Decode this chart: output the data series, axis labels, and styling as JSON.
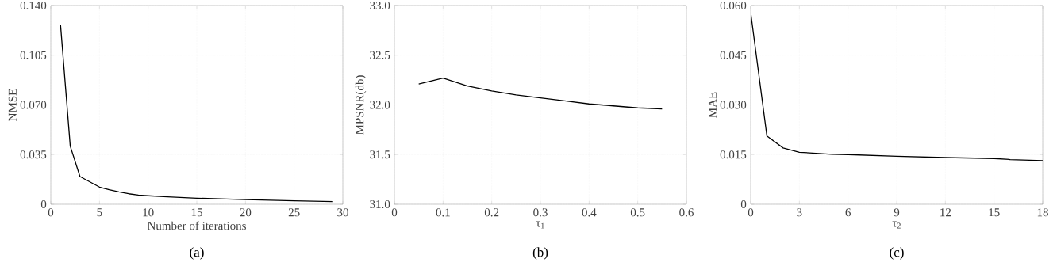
{
  "chart_data": [
    {
      "type": "line",
      "xlabel": "Number of iterations",
      "ylabel": "NMSE",
      "annotations": [
        "(a)"
      ],
      "color": "#000000",
      "grid": true,
      "x": [
        1,
        2,
        3,
        4,
        5,
        6,
        7,
        8,
        9,
        10,
        12,
        15,
        20,
        25,
        29
      ],
      "values": [
        0.1264,
        0.0409,
        0.0195,
        0.0158,
        0.0121,
        0.0102,
        0.0087,
        0.0074,
        0.0065,
        0.006,
        0.0052,
        0.0043,
        0.0033,
        0.0024,
        0.0019
      ],
      "xlim": [
        0,
        30
      ],
      "ylim": [
        0,
        0.14
      ],
      "xticks": [
        0,
        5,
        10,
        15,
        20,
        25,
        30
      ],
      "yticks": [
        0,
        {
          "value": 0.035,
          "label": "0.035"
        },
        {
          "value": 0.07,
          "label": "0.070"
        },
        {
          "value": 0.105,
          "label": "0.105"
        },
        {
          "value": 0.14,
          "label": "0.140"
        }
      ]
    },
    {
      "type": "line",
      "xlabel": "τ$_{1}$",
      "ylabel": "MPSNR(db)",
      "annotations": [
        "(b)"
      ],
      "color": "#000000",
      "grid": true,
      "x": [
        0.05,
        0.1,
        0.15,
        0.2,
        0.25,
        0.3,
        0.35,
        0.4,
        0.45,
        0.5,
        0.55
      ],
      "values": [
        32.21,
        32.27,
        32.19,
        32.14,
        32.1,
        32.07,
        32.04,
        32.01,
        31.99,
        31.97,
        31.96
      ],
      "xlim": [
        0,
        0.6
      ],
      "ylim": [
        31,
        33
      ],
      "xticks": [
        0,
        0.1,
        0.2,
        0.3,
        0.4,
        0.5,
        0.6
      ],
      "yticks": [
        {
          "value": 31,
          "label": "31.0"
        },
        31.5,
        {
          "value": 32,
          "label": "32.0"
        },
        32.5,
        {
          "value": 33,
          "label": "33.0"
        }
      ]
    },
    {
      "type": "line",
      "xlabel": "τ$_{2}$",
      "ylabel": "MAE",
      "annotations": [
        "(c)"
      ],
      "color": "#000000",
      "grid": true,
      "x": [
        0,
        1,
        2,
        3,
        5,
        6,
        9,
        12,
        15,
        16,
        18
      ],
      "values": [
        0.0578,
        0.0206,
        0.017,
        0.0157,
        0.0151,
        0.015,
        0.0145,
        0.0141,
        0.0138,
        0.0135,
        0.0132
      ],
      "xlim": [
        0,
        18
      ],
      "ylim": [
        0,
        0.06
      ],
      "xticks": [
        0,
        3,
        6,
        9,
        12,
        15,
        18
      ],
      "yticks": [
        0,
        0.015,
        {
          "value": 0.03,
          "label": "0.030"
        },
        {
          "value": 0.045,
          "label": "0.045"
        },
        {
          "value": 0.06,
          "label": "0.060"
        }
      ]
    }
  ]
}
